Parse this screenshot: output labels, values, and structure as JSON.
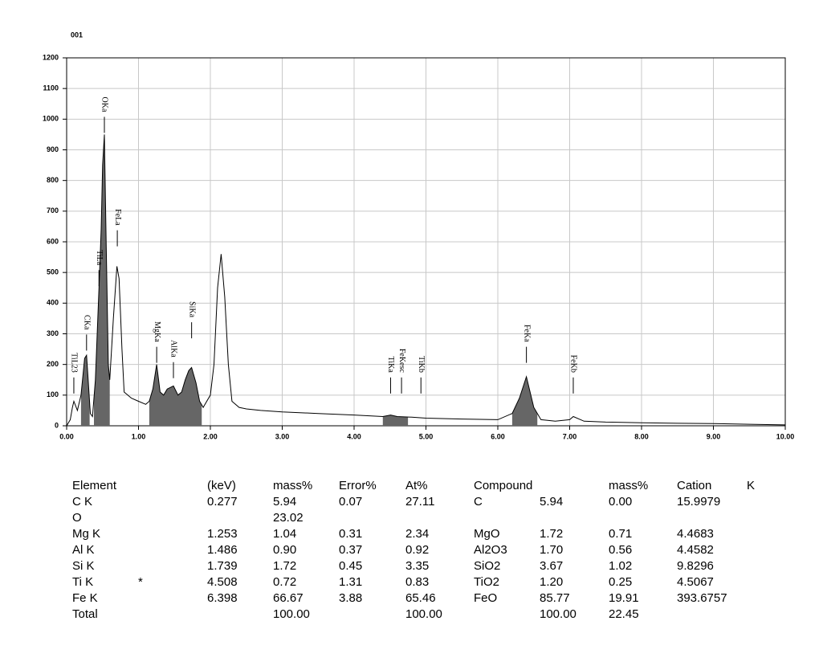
{
  "chart_data": {
    "type": "line",
    "title": "001",
    "x": [
      0,
      0.05,
      0.08,
      0.1,
      0.15,
      0.2,
      0.25,
      0.277,
      0.3,
      0.33,
      0.36,
      0.4,
      0.45,
      0.48,
      0.5,
      0.525,
      0.55,
      0.58,
      0.6,
      0.65,
      0.7,
      0.73,
      0.77,
      0.8,
      0.85,
      0.9,
      1.0,
      1.1,
      1.15,
      1.2,
      1.253,
      1.3,
      1.35,
      1.4,
      1.486,
      1.55,
      1.6,
      1.65,
      1.7,
      1.739,
      1.8,
      1.85,
      1.9,
      2.0,
      2.05,
      2.1,
      2.15,
      2.2,
      2.25,
      2.3,
      2.4,
      2.5,
      2.7,
      3.0,
      3.5,
      4.0,
      4.4,
      4.508,
      4.6,
      4.8,
      5.0,
      5.5,
      6.0,
      6.2,
      6.3,
      6.398,
      6.5,
      6.6,
      6.8,
      7.0,
      7.05,
      7.2,
      7.5,
      8.0,
      8.5,
      9.0,
      9.5,
      10.0
    ],
    "values": [
      0,
      20,
      60,
      80,
      50,
      100,
      220,
      230,
      150,
      40,
      30,
      150,
      450,
      640,
      850,
      950,
      600,
      200,
      150,
      350,
      520,
      480,
      250,
      110,
      100,
      90,
      80,
      70,
      80,
      120,
      200,
      110,
      100,
      120,
      130,
      100,
      110,
      150,
      180,
      190,
      140,
      80,
      60,
      100,
      200,
      450,
      560,
      420,
      200,
      80,
      60,
      55,
      50,
      45,
      40,
      35,
      30,
      35,
      30,
      28,
      25,
      22,
      20,
      40,
      90,
      160,
      60,
      20,
      15,
      20,
      30,
      15,
      12,
      10,
      8,
      7,
      5,
      3
    ],
    "color": "#000000",
    "fill_color": "#666666",
    "fill_ranges": [
      [
        0.2,
        0.32
      ],
      [
        0.38,
        0.6
      ],
      [
        1.15,
        1.88
      ],
      [
        4.4,
        4.75
      ],
      [
        6.2,
        6.55
      ]
    ],
    "peaks": [
      {
        "label": "TiL23",
        "x": 0.1,
        "y": 100
      },
      {
        "label": "CKa",
        "x": 0.277,
        "y": 240
      },
      {
        "label": "TiLa",
        "x": 0.45,
        "y": 450
      },
      {
        "label": "OKa",
        "x": 0.525,
        "y": 950
      },
      {
        "label": "FeLa",
        "x": 0.705,
        "y": 580
      },
      {
        "label": "MgKa",
        "x": 1.253,
        "y": 200
      },
      {
        "label": "AlKa",
        "x": 1.486,
        "y": 150
      },
      {
        "label": "SiKa",
        "x": 1.739,
        "y": 280
      },
      {
        "label": "TiKa",
        "x": 4.508,
        "y": 100
      },
      {
        "label": "FeKesc",
        "x": 4.66,
        "y": 100
      },
      {
        "label": "TiKb",
        "x": 4.93,
        "y": 100
      },
      {
        "label": "FeKa",
        "x": 6.398,
        "y": 200
      },
      {
        "label": "FeKb",
        "x": 7.05,
        "y": 100
      }
    ],
    "xlim": [
      0,
      10
    ],
    "ylim": [
      0,
      1200
    ],
    "xticks": [
      {
        "value": 0,
        "label": "0.00"
      },
      {
        "value": 1,
        "label": "1.00"
      },
      {
        "value": 2,
        "label": "2.00"
      },
      {
        "value": 3,
        "label": "3.00"
      },
      {
        "value": 4,
        "label": "4.00"
      },
      {
        "value": 5,
        "label": "5.00"
      },
      {
        "value": 6,
        "label": "6.00"
      },
      {
        "value": 7,
        "label": "7.00"
      },
      {
        "value": 8,
        "label": "8.00"
      },
      {
        "value": 9,
        "label": "9.00"
      },
      {
        "value": 10,
        "label": "10.00"
      }
    ],
    "yticks": [
      0,
      100,
      200,
      300,
      400,
      500,
      600,
      700,
      800,
      900,
      1000,
      1100,
      1200
    ],
    "grid": true
  },
  "table": {
    "rows": [
      [
        "Element",
        null,
        "(keV)",
        "mass%",
        "Error%",
        "At%",
        "Compound",
        null,
        "mass%",
        "Cation",
        "K"
      ],
      [
        "C K",
        null,
        "0.277",
        "5.94",
        "0.07",
        "27.11",
        "C",
        "5.94",
        "0.00",
        "15.9979",
        null
      ],
      [
        "O",
        null,
        null,
        "23.02",
        null,
        null,
        null,
        null,
        null,
        null,
        null
      ],
      [
        "Mg K",
        null,
        "1.253",
        "1.04",
        "0.31",
        "2.34",
        "MgO",
        "1.72",
        "0.71",
        "4.4683",
        null
      ],
      [
        "Al K",
        null,
        "1.486",
        "0.90",
        "0.37",
        "0.92",
        "Al2O3",
        "1.70",
        "0.56",
        "4.4582",
        null
      ],
      [
        "Si K",
        null,
        "1.739",
        "1.72",
        "0.45",
        "3.35",
        "SiO2",
        "3.67",
        "1.02",
        "9.8296",
        null
      ],
      [
        "Ti K",
        "*",
        "4.508",
        "0.72",
        "1.31",
        "0.83",
        "TiO2",
        "1.20",
        "0.25",
        "4.5067",
        null
      ],
      [
        "Fe K",
        null,
        "6.398",
        "66.67",
        "3.88",
        "65.46",
        "FeO",
        "85.77",
        "19.91",
        "393.6757",
        null
      ],
      [
        "Total",
        null,
        null,
        "100.00",
        null,
        "100.00",
        null,
        "100.00",
        "22.45",
        null,
        null
      ]
    ]
  }
}
